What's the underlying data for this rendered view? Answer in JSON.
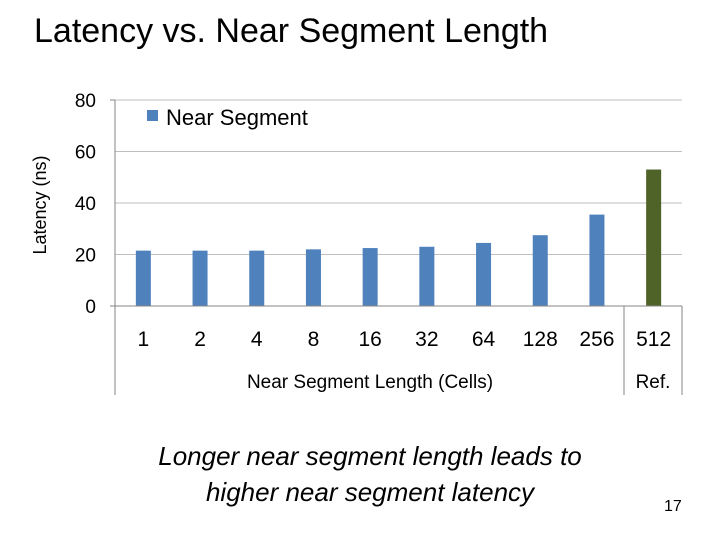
{
  "slide": {
    "title": "Latency vs. Near Segment Length",
    "takeaway_line1": "Longer near segment length leads to",
    "takeaway_line2": "higher near segment latency",
    "page_number": "17"
  },
  "chart_data": {
    "type": "bar",
    "title": "",
    "ylabel": "Latency (ns)",
    "xlabel": "Near Segment Length (Cells)",
    "ylim": [
      0,
      80
    ],
    "yticks": [
      0,
      20,
      40,
      60,
      80
    ],
    "grid": true,
    "legend_position": "top-left",
    "categories": [
      "1",
      "2",
      "4",
      "8",
      "16",
      "32",
      "64",
      "128",
      "256",
      "512"
    ],
    "series": [
      {
        "name": "Near Segment",
        "values": [
          21.5,
          21.5,
          21.5,
          22,
          22.5,
          23,
          24.5,
          27.5,
          35.5,
          53
        ],
        "color": "#4F81BD"
      }
    ],
    "reference": {
      "category": "512",
      "label": "Ref.",
      "color": "#4F6228"
    }
  }
}
